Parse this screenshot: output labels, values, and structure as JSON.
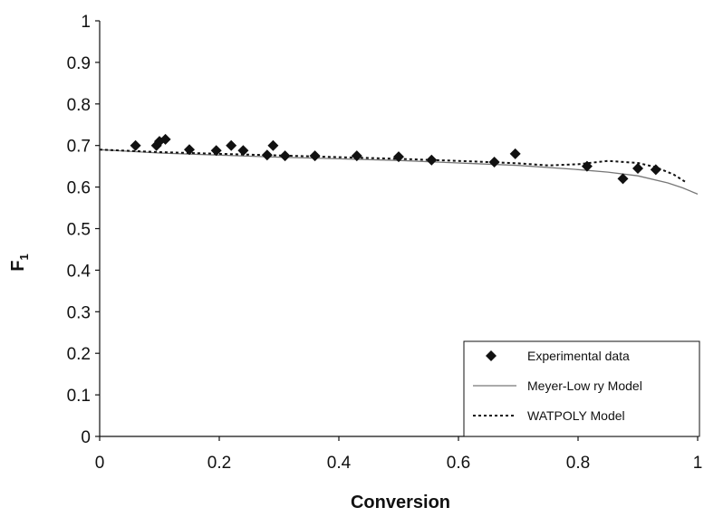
{
  "chart_data": {
    "type": "scatter",
    "xlabel": "Conversion",
    "ylabel": "F",
    "ylabel_subscript": "1",
    "xlim": [
      0,
      1
    ],
    "ylim": [
      0,
      1
    ],
    "x_ticks": [
      "0",
      "0.2",
      "0.4",
      "0.6",
      "0.8",
      "1"
    ],
    "y_ticks": [
      "0",
      "0.1",
      "0.2",
      "0.3",
      "0.4",
      "0.5",
      "0.6",
      "0.7",
      "0.8",
      "0.9",
      "1"
    ],
    "grid": false,
    "legend_position": "bottom-right",
    "series": [
      {
        "name": "Experimental data",
        "kind": "markers",
        "marker": "diamond",
        "color": "#111111",
        "points": [
          [
            0.06,
            0.7
          ],
          [
            0.095,
            0.7
          ],
          [
            0.1,
            0.71
          ],
          [
            0.11,
            0.715
          ],
          [
            0.15,
            0.69
          ],
          [
            0.195,
            0.688
          ],
          [
            0.22,
            0.7
          ],
          [
            0.24,
            0.688
          ],
          [
            0.28,
            0.677
          ],
          [
            0.29,
            0.7
          ],
          [
            0.31,
            0.675
          ],
          [
            0.36,
            0.675
          ],
          [
            0.43,
            0.675
          ],
          [
            0.5,
            0.673
          ],
          [
            0.555,
            0.665
          ],
          [
            0.66,
            0.66
          ],
          [
            0.695,
            0.68
          ],
          [
            0.815,
            0.65
          ],
          [
            0.875,
            0.62
          ],
          [
            0.9,
            0.645
          ],
          [
            0.93,
            0.642
          ]
        ]
      },
      {
        "name": "Meyer-Low ry Model",
        "kind": "line",
        "dash": "solid",
        "color": "#777777",
        "points": [
          [
            0.0,
            0.69
          ],
          [
            0.1,
            0.682
          ],
          [
            0.2,
            0.677
          ],
          [
            0.3,
            0.672
          ],
          [
            0.4,
            0.668
          ],
          [
            0.5,
            0.664
          ],
          [
            0.6,
            0.658
          ],
          [
            0.7,
            0.652
          ],
          [
            0.8,
            0.642
          ],
          [
            0.85,
            0.636
          ],
          [
            0.9,
            0.627
          ],
          [
            0.95,
            0.61
          ],
          [
            0.975,
            0.598
          ],
          [
            1.0,
            0.583
          ]
        ]
      },
      {
        "name": "WATPOLY Model",
        "kind": "line",
        "dash": "dotted",
        "color": "#111111",
        "points": [
          [
            0.0,
            0.69
          ],
          [
            0.1,
            0.684
          ],
          [
            0.2,
            0.68
          ],
          [
            0.3,
            0.676
          ],
          [
            0.4,
            0.672
          ],
          [
            0.5,
            0.668
          ],
          [
            0.6,
            0.663
          ],
          [
            0.7,
            0.657
          ],
          [
            0.75,
            0.652
          ],
          [
            0.8,
            0.655
          ],
          [
            0.85,
            0.663
          ],
          [
            0.9,
            0.658
          ],
          [
            0.93,
            0.648
          ],
          [
            0.96,
            0.63
          ],
          [
            0.98,
            0.612
          ]
        ]
      }
    ]
  }
}
